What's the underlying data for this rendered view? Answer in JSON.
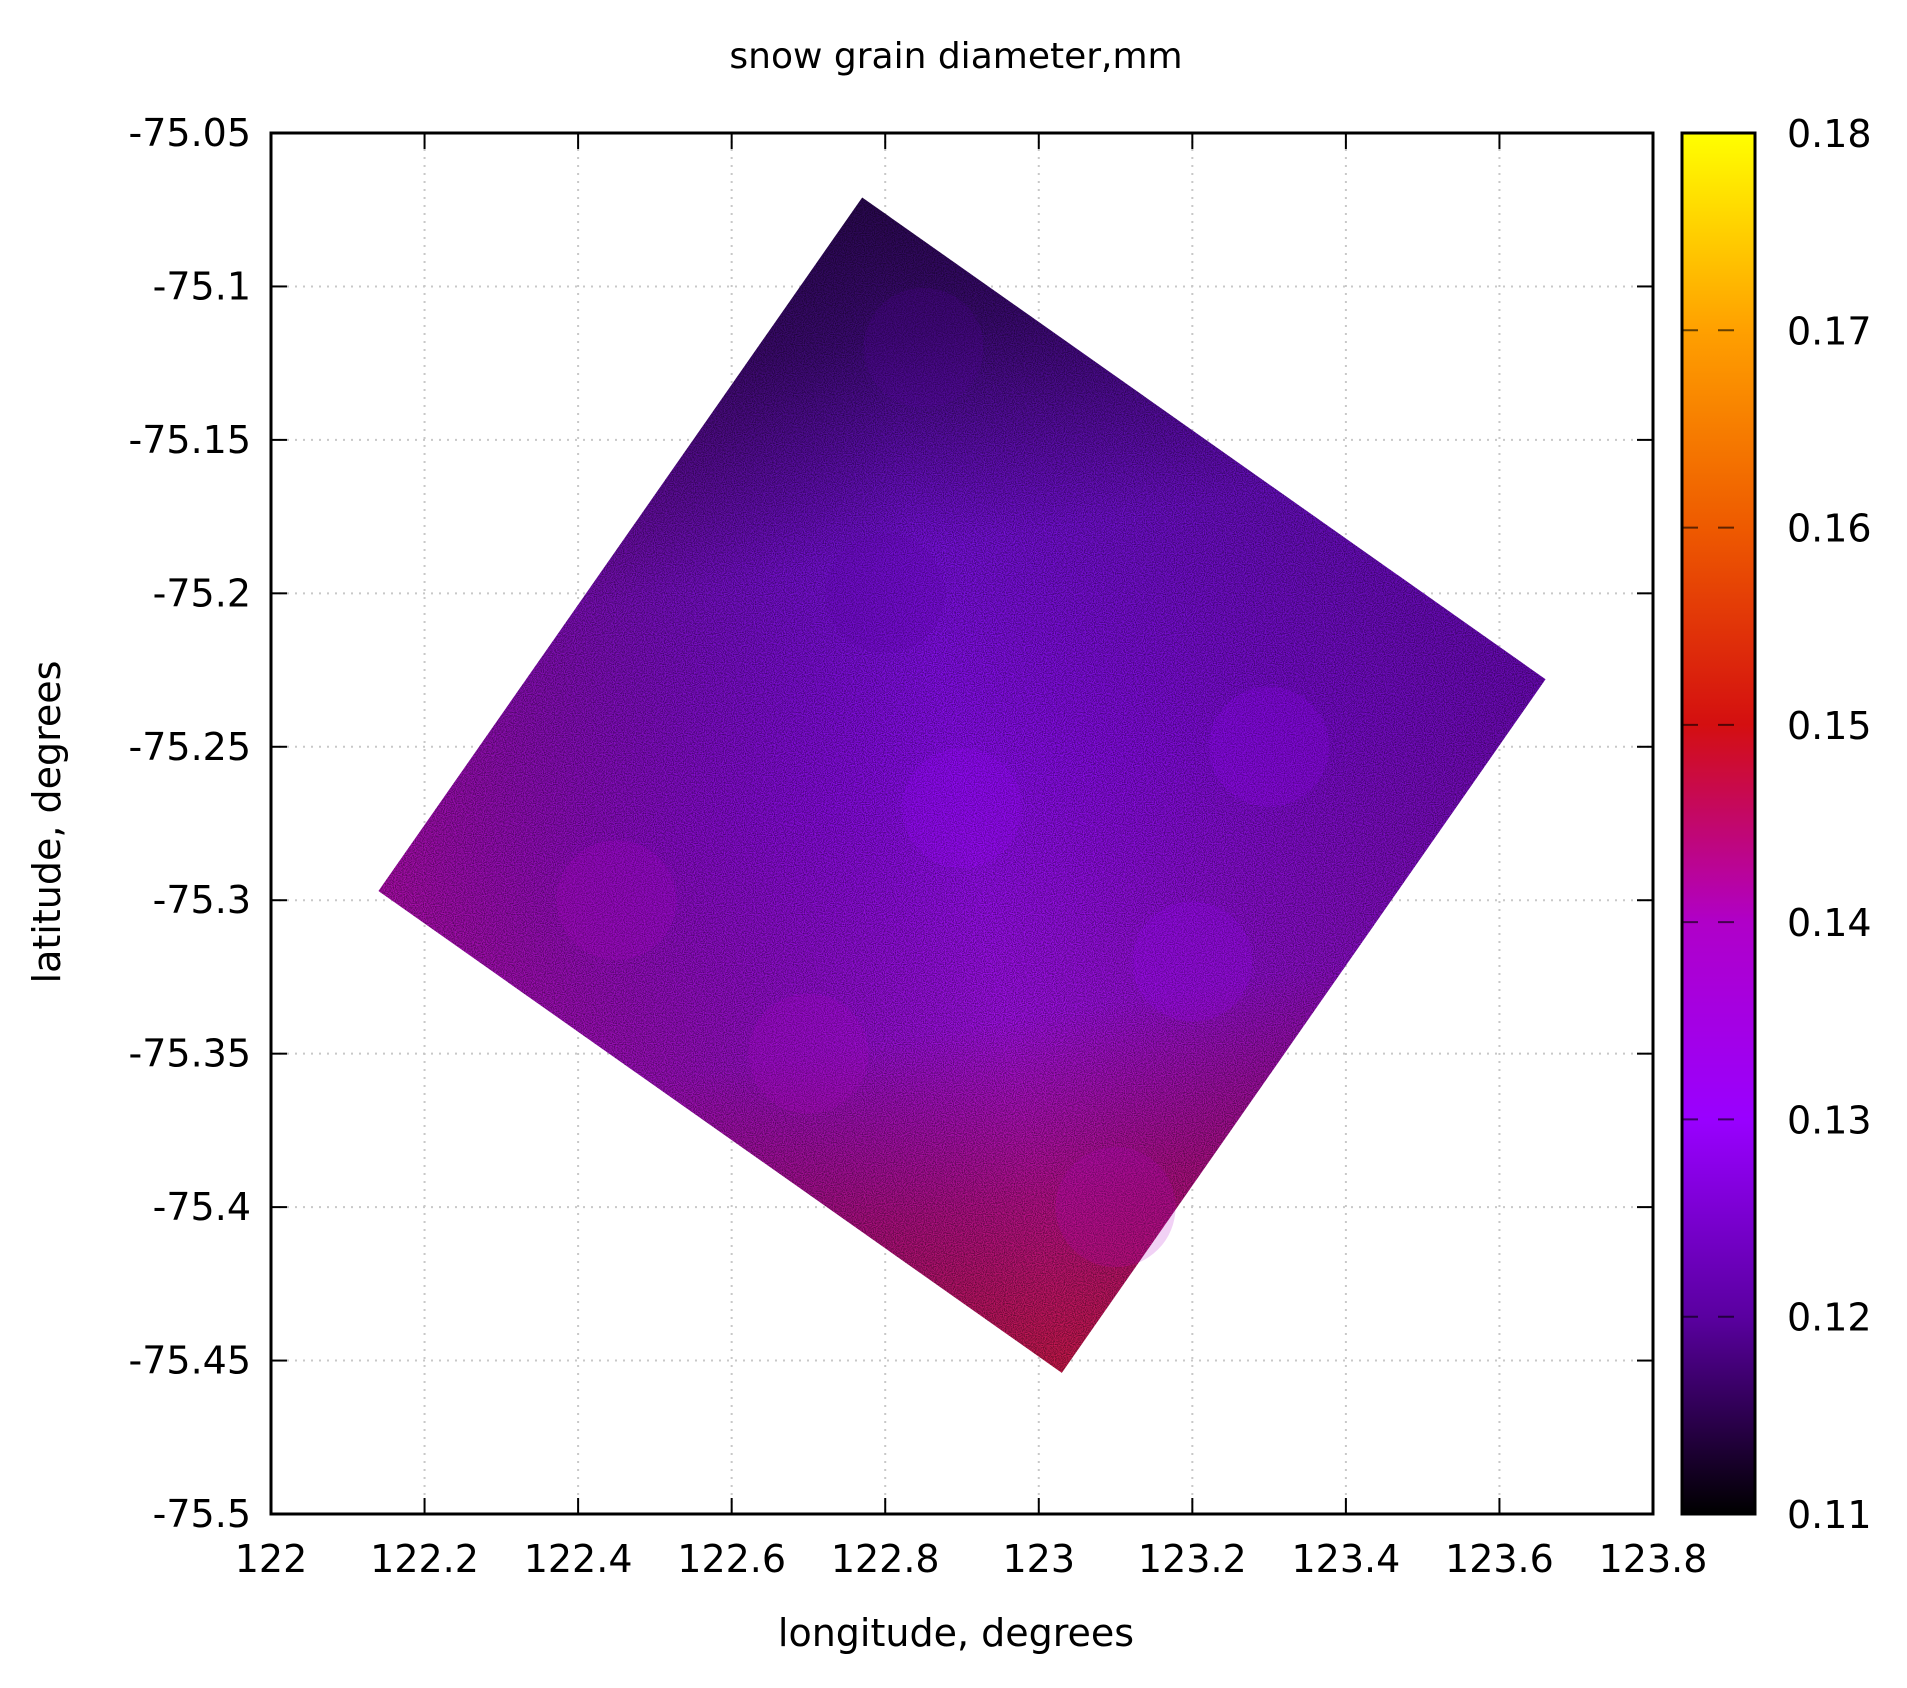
{
  "chart_data": {
    "type": "heatmap",
    "title": "snow grain diameter,mm",
    "xlabel": "longitude, degrees",
    "ylabel": "latitude, degrees",
    "xlim": [
      122,
      123.8
    ],
    "ylim": [
      -75.5,
      -75.05
    ],
    "x_ticks": [
      "122",
      "122.2",
      "122.4",
      "122.6",
      "122.8",
      "123",
      "123.2",
      "123.4",
      "123.6",
      "123.8"
    ],
    "y_ticks": [
      "-75.05",
      "-75.1",
      "-75.15",
      "-75.2",
      "-75.25",
      "-75.3",
      "-75.35",
      "-75.4",
      "-75.45",
      "-75.5"
    ],
    "grid": true,
    "colorbar": {
      "range": [
        0.11,
        0.18
      ],
      "ticks": [
        "0.11",
        "0.12",
        "0.13",
        "0.14",
        "0.15",
        "0.16",
        "0.17",
        "0.18"
      ],
      "colormap": [
        "#000000",
        "#5a00a0",
        "#9900ff",
        "#b000c8",
        "#d40f10",
        "#ee5a00",
        "#ffa000",
        "#ffff00"
      ]
    },
    "swath": {
      "corners_lon_lat": [
        [
          122.77,
          -75.071
        ],
        [
          123.66,
          -75.228
        ],
        [
          123.03,
          -75.454
        ],
        [
          122.14,
          -75.297
        ]
      ],
      "value_range_observed": [
        0.11,
        0.18
      ],
      "value_samples": [
        {
          "lon": 122.85,
          "lat": -75.12,
          "value": 0.117
        },
        {
          "lon": 122.8,
          "lat": -75.2,
          "value": 0.124
        },
        {
          "lon": 123.3,
          "lat": -75.25,
          "value": 0.125
        },
        {
          "lon": 122.9,
          "lat": -75.27,
          "value": 0.127
        },
        {
          "lon": 122.45,
          "lat": -75.3,
          "value": 0.142
        },
        {
          "lon": 122.7,
          "lat": -75.35,
          "value": 0.138
        },
        {
          "lon": 123.1,
          "lat": -75.4,
          "value": 0.141
        },
        {
          "lon": 123.2,
          "lat": -75.32,
          "value": 0.13
        }
      ]
    }
  }
}
